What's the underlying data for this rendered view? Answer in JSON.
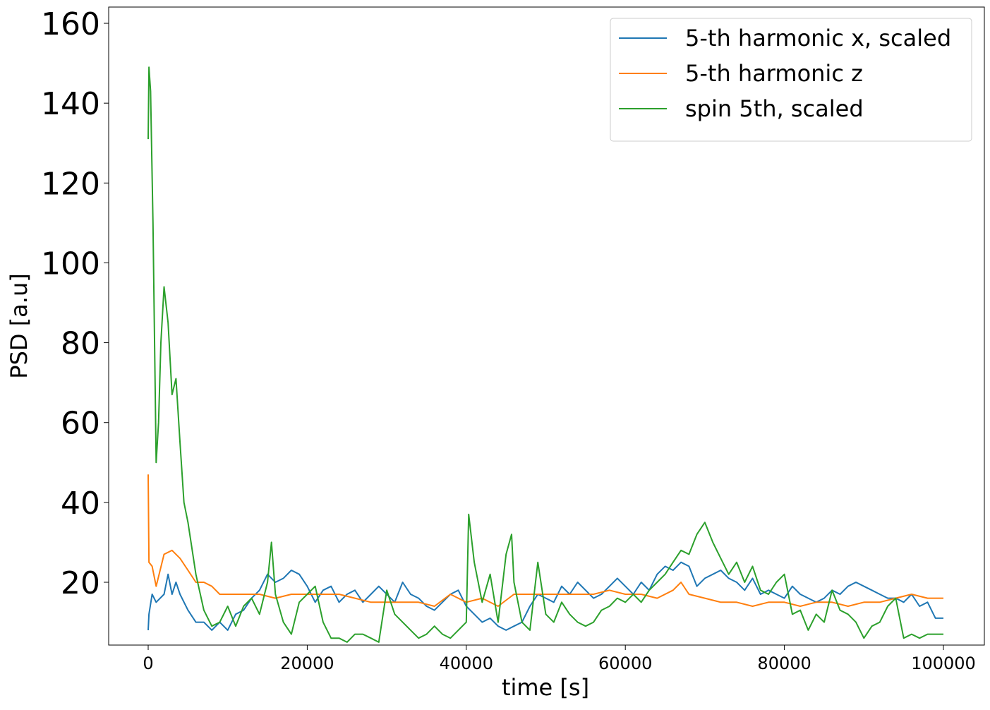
{
  "chart_data": {
    "type": "line",
    "xlabel": "time [s]",
    "ylabel": "PSD [a.u]",
    "xlim": [
      -4969,
      105146
    ],
    "ylim": [
      4.27,
      164.07
    ],
    "xticks": [
      0,
      20000,
      40000,
      60000,
      80000,
      100000
    ],
    "yticks": [
      20,
      40,
      60,
      80,
      100,
      120,
      140,
      160
    ],
    "legend": "upper right",
    "series": [
      {
        "name": "5-th harmonic x, scaled",
        "color": "#1f77b4",
        "x": [
          0,
          100,
          500,
          1000,
          2000,
          2500,
          3000,
          3500,
          4000,
          5000,
          6000,
          7000,
          8000,
          9000,
          10000,
          11000,
          12000,
          13000,
          14000,
          15000,
          16000,
          17000,
          18000,
          19000,
          20000,
          21000,
          22000,
          23000,
          24000,
          25000,
          26000,
          27000,
          28000,
          29000,
          30000,
          31000,
          32000,
          33000,
          34000,
          35000,
          36000,
          37000,
          38000,
          39000,
          40000,
          41000,
          42000,
          43000,
          44000,
          45000,
          46000,
          47000,
          48000,
          49000,
          50000,
          51000,
          52000,
          53000,
          54000,
          55000,
          56000,
          57000,
          58000,
          59000,
          60000,
          61000,
          62000,
          63000,
          64000,
          65000,
          66000,
          67000,
          68000,
          69000,
          70000,
          71000,
          72000,
          73000,
          74000,
          75000,
          76000,
          77000,
          78000,
          79000,
          80000,
          81000,
          82000,
          83000,
          84000,
          85000,
          86000,
          87000,
          88000,
          89000,
          90000,
          91000,
          92000,
          93000,
          94000,
          95000,
          96000,
          97000,
          98000,
          99000,
          100000
        ],
        "values": [
          8,
          12,
          17,
          15,
          17,
          22,
          17,
          20,
          17,
          13,
          10,
          10,
          8,
          10,
          8,
          12,
          13,
          16,
          18,
          22,
          20,
          21,
          23,
          22,
          19,
          15,
          18,
          19,
          15,
          17,
          18,
          15,
          17,
          19,
          17,
          15,
          20,
          17,
          16,
          14,
          13,
          15,
          17,
          18,
          14,
          12,
          10,
          11,
          9,
          8,
          9,
          10,
          14,
          17,
          16,
          15,
          19,
          17,
          20,
          18,
          16,
          17,
          19,
          21,
          19,
          17,
          20,
          18,
          22,
          24,
          23,
          25,
          24,
          19,
          21,
          22,
          23,
          21,
          20,
          18,
          21,
          17,
          18,
          17,
          16,
          19,
          17,
          16,
          15,
          16,
          18,
          17,
          19,
          20,
          19,
          18,
          17,
          16,
          16,
          15,
          17,
          14,
          15,
          11,
          11
        ]
      },
      {
        "name": "5-th harmonic z",
        "color": "#ff7f0e",
        "x": [
          0,
          100,
          500,
          1000,
          2000,
          3000,
          4000,
          5000,
          6000,
          7000,
          8000,
          9000,
          10000,
          12000,
          14000,
          16000,
          18000,
          20000,
          22000,
          24000,
          26000,
          28000,
          30000,
          32000,
          34000,
          36000,
          38000,
          40000,
          42000,
          44000,
          46000,
          48000,
          50000,
          52000,
          54000,
          56000,
          58000,
          60000,
          62000,
          64000,
          66000,
          67000,
          68000,
          70000,
          72000,
          74000,
          76000,
          78000,
          80000,
          82000,
          84000,
          86000,
          88000,
          90000,
          92000,
          94000,
          96000,
          98000,
          100000
        ],
        "values": [
          47,
          25,
          24,
          19,
          27,
          28,
          26,
          23,
          20,
          20,
          19,
          17,
          17,
          17,
          17,
          16,
          17,
          17,
          17,
          17,
          16,
          15,
          15,
          15,
          15,
          14,
          17,
          15,
          16,
          14,
          17,
          17,
          17,
          17,
          17,
          17,
          18,
          17,
          17,
          16,
          18,
          20,
          17,
          16,
          15,
          15,
          14,
          15,
          15,
          14,
          15,
          15,
          14,
          15,
          15,
          16,
          17,
          16,
          16
        ]
      },
      {
        "name": "spin 5th, scaled",
        "color": "#2ca02c",
        "x": [
          0,
          100,
          300,
          600,
          1000,
          1300,
          1600,
          2000,
          2500,
          3000,
          3500,
          4000,
          4500,
          5000,
          6000,
          7000,
          8000,
          9000,
          10000,
          11000,
          12000,
          13000,
          14000,
          15000,
          15500,
          16000,
          17000,
          18000,
          19000,
          20000,
          21000,
          22000,
          23000,
          24000,
          25000,
          26000,
          27000,
          28000,
          29000,
          30000,
          31000,
          32000,
          33000,
          34000,
          35000,
          36000,
          37000,
          38000,
          39000,
          40000,
          40300,
          41000,
          42000,
          43000,
          44000,
          45000,
          45700,
          46000,
          47000,
          48000,
          49000,
          50000,
          51000,
          52000,
          53000,
          54000,
          55000,
          56000,
          57000,
          58000,
          59000,
          60000,
          61000,
          62000,
          63000,
          64000,
          65000,
          66000,
          67000,
          68000,
          69000,
          70000,
          71000,
          72000,
          73000,
          74000,
          75000,
          76000,
          77000,
          78000,
          79000,
          80000,
          81000,
          82000,
          83000,
          84000,
          85000,
          86000,
          87000,
          88000,
          89000,
          90000,
          91000,
          92000,
          93000,
          94000,
          95000,
          96000,
          97000,
          98000,
          99000,
          100000
        ],
        "values": [
          131,
          149,
          143,
          110,
          50,
          60,
          80,
          94,
          85,
          67,
          71,
          55,
          40,
          35,
          22,
          13,
          9,
          10,
          14,
          9,
          14,
          16,
          12,
          20,
          30,
          17,
          10,
          7,
          15,
          17,
          19,
          10,
          6,
          6,
          5,
          7,
          7,
          6,
          5,
          18,
          12,
          10,
          8,
          6,
          7,
          9,
          7,
          6,
          8,
          10,
          37,
          25,
          15,
          22,
          10,
          27,
          32,
          20,
          10,
          8,
          25,
          12,
          10,
          15,
          12,
          10,
          9,
          10,
          13,
          14,
          16,
          15,
          17,
          15,
          18,
          20,
          22,
          25,
          28,
          27,
          32,
          35,
          30,
          26,
          22,
          25,
          20,
          24,
          18,
          17,
          20,
          22,
          12,
          13,
          8,
          12,
          10,
          18,
          13,
          12,
          10,
          6,
          9,
          10,
          14,
          16,
          6,
          7,
          6,
          7,
          7,
          7
        ]
      }
    ]
  }
}
